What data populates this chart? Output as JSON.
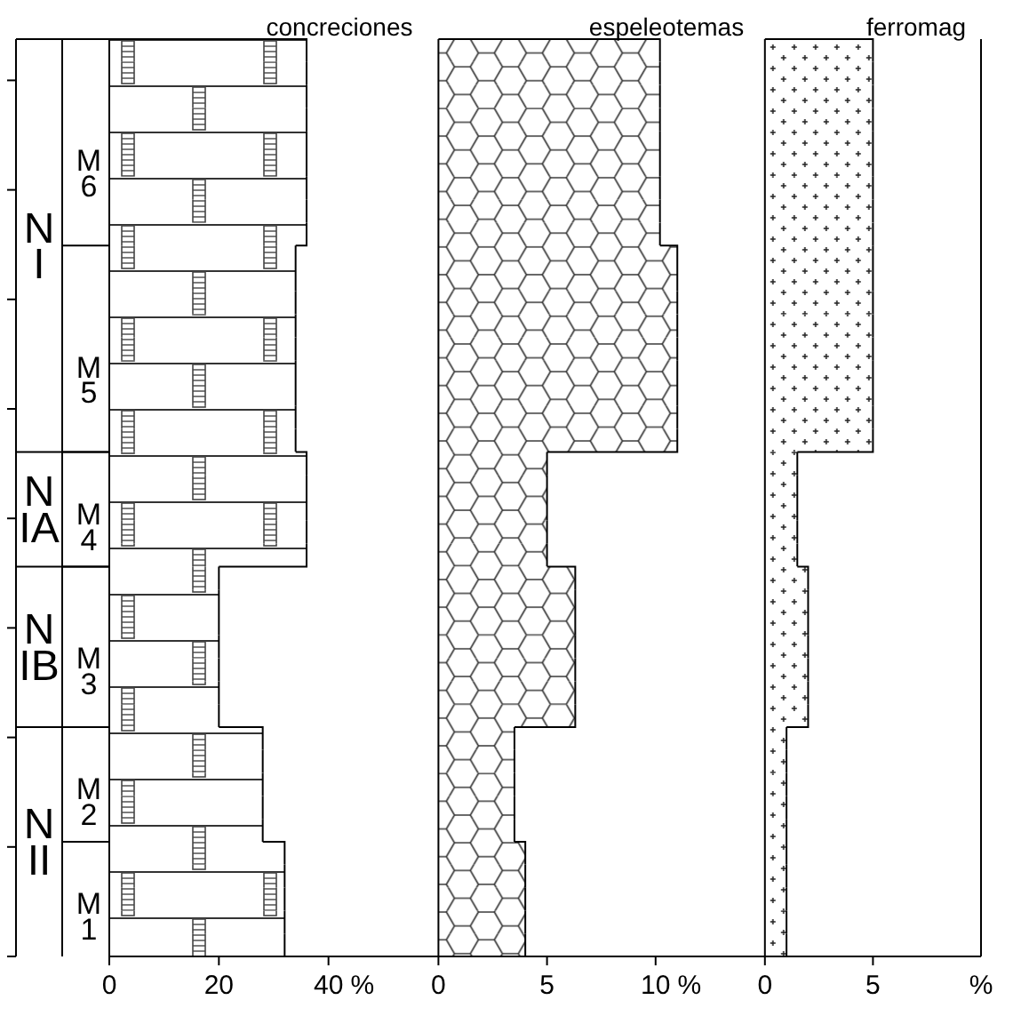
{
  "chart_data": [
    {
      "type": "bar",
      "orientation": "horizontal",
      "title": "concreciones",
      "categories": [
        null,
        null,
        null,
        null,
        null,
        null,
        null,
        null,
        null,
        null,
        null,
        null,
        null,
        null,
        null,
        null,
        null,
        null,
        null,
        null,
        null,
        null,
        null,
        null,
        null,
        null,
        null,
        null,
        null,
        null,
        null,
        null,
        null,
        null,
        null,
        null,
        null,
        null,
        null,
        null
      ],
      "values": [
        36,
        36,
        36,
        36,
        36,
        36,
        36,
        36,
        36,
        34,
        34,
        34,
        34,
        34,
        34,
        34,
        34,
        34,
        36,
        36,
        36,
        36,
        36,
        20,
        20,
        20,
        20,
        20,
        20,
        20,
        28,
        28,
        28,
        28,
        28,
        32,
        32,
        32,
        32,
        32
      ],
      "xlim": [
        0,
        60
      ],
      "xticks": [
        0,
        20,
        40
      ],
      "xlabel": "%",
      "annotations": [
        "N I",
        "N IA",
        "N IB",
        "N II",
        "M 6",
        "M 5",
        "M 4",
        "M 3",
        "M 2",
        "M 1"
      ]
    },
    {
      "type": "bar",
      "orientation": "horizontal",
      "title": "espeleotemas",
      "categories": [
        null,
        null,
        null,
        null,
        null,
        null,
        null,
        null,
        null,
        null,
        null,
        null,
        null,
        null,
        null,
        null,
        null,
        null,
        null,
        null,
        null,
        null,
        null,
        null,
        null,
        null,
        null,
        null,
        null,
        null,
        null,
        null,
        null,
        null,
        null,
        null,
        null,
        null,
        null,
        null
      ],
      "values": [
        10.2,
        10.2,
        10.2,
        10.2,
        10.2,
        10.2,
        10.2,
        10.2,
        10.2,
        11,
        11,
        11,
        11,
        11,
        11,
        11,
        11,
        11,
        5,
        5,
        5,
        5,
        5,
        6.3,
        6.3,
        6.3,
        6.3,
        6.3,
        6.3,
        6.3,
        3.5,
        3.5,
        3.5,
        3.5,
        3.5,
        4,
        4,
        4,
        4,
        4
      ],
      "xlim": [
        0,
        15
      ],
      "xticks": [
        0,
        5,
        10
      ],
      "xlabel": "%"
    },
    {
      "type": "bar",
      "orientation": "horizontal",
      "title": "ferromag",
      "categories": [
        null,
        null,
        null,
        null,
        null,
        null,
        null,
        null,
        null,
        null,
        null,
        null,
        null,
        null,
        null,
        null,
        null,
        null,
        null,
        null,
        null,
        null,
        null,
        null,
        null,
        null,
        null,
        null,
        null,
        null,
        null,
        null,
        null,
        null,
        null,
        null,
        null,
        null,
        null,
        null
      ],
      "values": [
        5,
        5,
        5,
        5,
        5,
        5,
        5,
        5,
        5,
        5,
        5,
        5,
        5,
        5,
        5,
        5,
        5,
        5,
        1.5,
        1.5,
        1.5,
        1.5,
        1.5,
        2,
        2,
        2,
        2,
        2,
        2,
        2,
        1,
        1,
        1,
        1,
        1,
        1,
        1,
        1,
        1,
        1
      ],
      "xlim": [
        0,
        10
      ],
      "xticks": [
        0,
        5
      ],
      "xlabel": "%"
    }
  ]
}
